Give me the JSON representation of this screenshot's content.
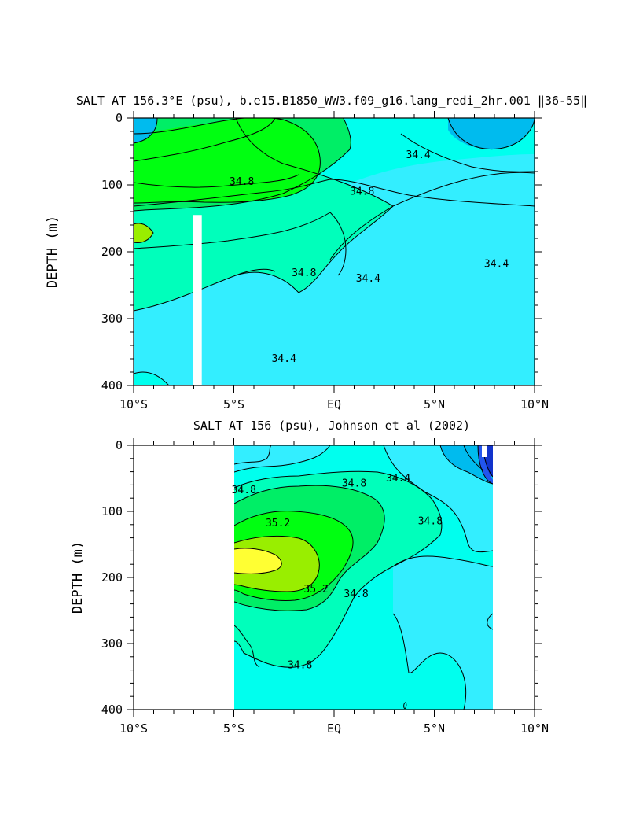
{
  "palette": {
    "c34_2": "#00bbee",
    "c34_4": "#33eeff",
    "c34_6": "#00ffee",
    "c34_8": "#00ffbb",
    "c35_0": "#00ee66",
    "c35_2": "#00ff11",
    "c35_4": "#99ee00",
    "c35_6": "#ffff33",
    "deep_blue": "#1133cc",
    "blue": "#2255ee"
  },
  "chart_data": [
    {
      "type": "contour",
      "title": "SALT AT 156.3°E (psu), b.e15.B1850_WW3.f09_g16.lang_redi_2hr.001 ‖36-55‖",
      "xlabel": "",
      "ylabel": "DEPTH (m)",
      "xlim": [
        -10,
        10
      ],
      "ylim": [
        400,
        0
      ],
      "x_ticks": [
        {
          "value": -10,
          "label": "10°S"
        },
        {
          "value": -5,
          "label": "5°S"
        },
        {
          "value": 0,
          "label": "EQ"
        },
        {
          "value": 5,
          "label": "5°N"
        },
        {
          "value": 10,
          "label": "10°N"
        }
      ],
      "y_ticks": [
        {
          "value": 0,
          "label": "0"
        },
        {
          "value": 100,
          "label": "100"
        },
        {
          "value": 200,
          "label": "200"
        },
        {
          "value": 300,
          "label": "300"
        },
        {
          "value": 400,
          "label": "400"
        }
      ],
      "contour_labels": [
        {
          "x": 4.2,
          "y": 55,
          "text": "34.4"
        },
        {
          "x": -4.6,
          "y": 95,
          "text": "34.8"
        },
        {
          "x": 1.4,
          "y": 110,
          "text": "34.8"
        },
        {
          "x": -1.5,
          "y": 232,
          "text": "34.8"
        },
        {
          "x": 1.7,
          "y": 240,
          "text": "34.4"
        },
        {
          "x": 8.1,
          "y": 218,
          "text": "34.4"
        },
        {
          "x": -2.5,
          "y": 360,
          "text": "34.4"
        }
      ],
      "missing_data_bar": {
        "x0": -7.05,
        "x1": -6.6,
        "y0": 145,
        "y1": 400
      }
    },
    {
      "type": "contour",
      "title": "SALT AT 156 (psu), Johnson et al (2002)",
      "xlabel": "",
      "ylabel": "DEPTH (m)",
      "xlim": [
        -10,
        10
      ],
      "ylim": [
        400,
        0
      ],
      "data_extent": [
        -5,
        8
      ],
      "x_ticks": [
        {
          "value": -10,
          "label": "10°S"
        },
        {
          "value": -5,
          "label": "5°S"
        },
        {
          "value": 0,
          "label": "EQ"
        },
        {
          "value": 5,
          "label": "5°N"
        },
        {
          "value": 10,
          "label": "10°N"
        }
      ],
      "y_ticks": [
        {
          "value": 0,
          "label": "0"
        },
        {
          "value": 100,
          "label": "100"
        },
        {
          "value": 200,
          "label": "200"
        },
        {
          "value": 300,
          "label": "300"
        },
        {
          "value": 400,
          "label": "400"
        }
      ],
      "contour_labels": [
        {
          "x": -4.5,
          "y": 68,
          "text": "34.8"
        },
        {
          "x": 1.0,
          "y": 58,
          "text": "34.8"
        },
        {
          "x": 3.2,
          "y": 50,
          "text": "34.4"
        },
        {
          "x": -2.8,
          "y": 118,
          "text": "35.2"
        },
        {
          "x": 4.8,
          "y": 115,
          "text": "34.8"
        },
        {
          "x": -0.9,
          "y": 218,
          "text": "35.2"
        },
        {
          "x": 1.1,
          "y": 225,
          "text": "34.8"
        },
        {
          "x": -1.7,
          "y": 333,
          "text": "34.8"
        }
      ]
    }
  ]
}
